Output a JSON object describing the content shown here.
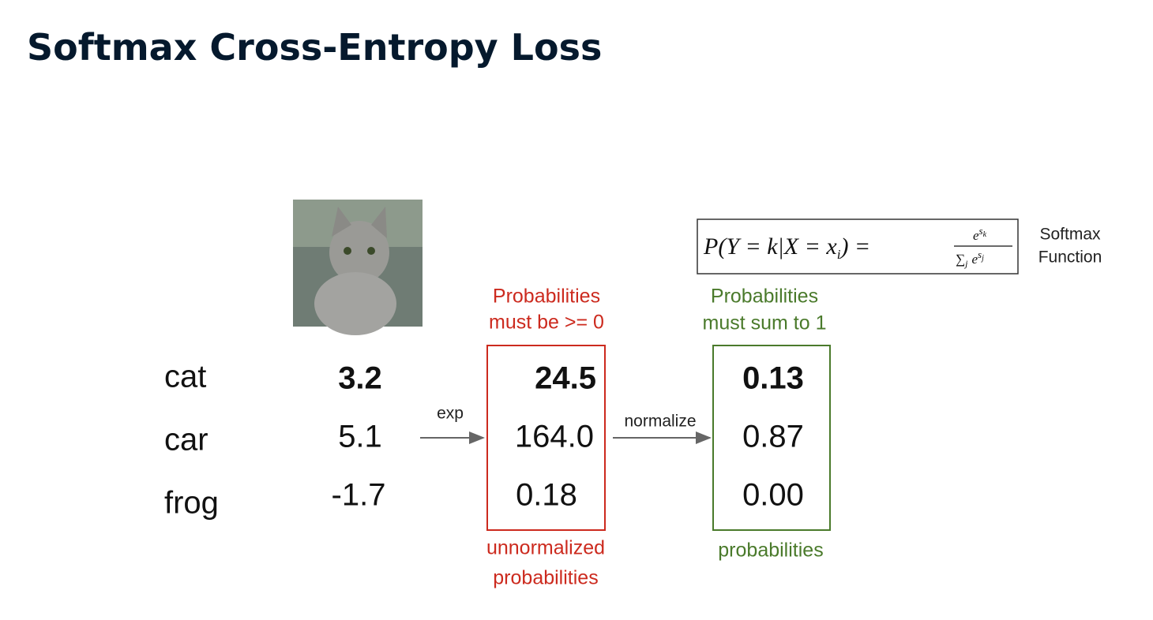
{
  "header": {
    "title": "Softmax Cross-Entropy Loss"
  },
  "classes": [
    "cat",
    "car",
    "frog"
  ],
  "scores": [
    "3.2",
    "5.1",
    "-1.7"
  ],
  "exp_label": "exp",
  "unnormalized": [
    "24.5",
    "164.0",
    "0.18"
  ],
  "normalize_label": "normalize",
  "probabilities": [
    "0.13",
    "0.87",
    "0.00"
  ],
  "red_note_top": [
    "Probabilities",
    "must be >= 0"
  ],
  "red_note_bottom": [
    "unnormalized",
    "probabilities"
  ],
  "green_note_top": [
    "Probabilities",
    "must sum to 1"
  ],
  "green_note_bottom": "probabilities",
  "formula": {
    "lhs": "P(Y = k|X = x",
    "lhs_sub": "i",
    "lhs_end": ") =",
    "num_base": "e",
    "num_sup": "s",
    "num_sup_sub": "k",
    "den_sum": "∑",
    "den_sum_sub": "j",
    "den_base": "e",
    "den_sup": "s",
    "den_sup_sub": "j"
  },
  "formula_caption": [
    "Softmax",
    "Function"
  ]
}
